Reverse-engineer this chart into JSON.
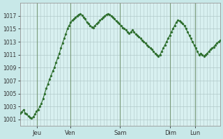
{
  "title": "",
  "background_color": "#c8e8e8",
  "plot_bg_color": "#d8f0f0",
  "line_color": "#2d6e2d",
  "marker_color": "#2d6e2d",
  "grid_color": "#b0c8c8",
  "day_line_color": "#7a9a7a",
  "ylim": [
    1000,
    1019
  ],
  "yticks": [
    1001,
    1003,
    1005,
    1007,
    1009,
    1011,
    1013,
    1015,
    1017
  ],
  "days": [
    "Jeu",
    "Ven",
    "Sam",
    "Dim",
    "Lun"
  ],
  "day_positions": [
    0.083,
    0.25,
    0.5,
    0.75,
    0.875
  ],
  "pressure_values": [
    1002.0,
    1002.2,
    1002.5,
    1002.0,
    1001.8,
    1001.5,
    1001.3,
    1001.2,
    1001.4,
    1001.8,
    1002.3,
    1002.5,
    1003.0,
    1003.5,
    1004.2,
    1005.0,
    1005.8,
    1006.5,
    1007.2,
    1007.8,
    1008.5,
    1009.0,
    1009.8,
    1010.5,
    1011.2,
    1012.0,
    1012.8,
    1013.5,
    1014.2,
    1015.0,
    1015.5,
    1016.0,
    1016.3,
    1016.5,
    1016.8,
    1017.0,
    1017.2,
    1017.3,
    1017.1,
    1016.8,
    1016.5,
    1016.0,
    1015.8,
    1015.5,
    1015.3,
    1015.2,
    1015.5,
    1015.8,
    1016.0,
    1016.3,
    1016.5,
    1016.8,
    1017.0,
    1017.2,
    1017.3,
    1017.2,
    1017.0,
    1016.8,
    1016.5,
    1016.2,
    1016.0,
    1015.8,
    1015.5,
    1015.2,
    1015.0,
    1014.8,
    1014.5,
    1014.3,
    1014.5,
    1014.8,
    1014.5,
    1014.2,
    1014.0,
    1013.8,
    1013.5,
    1013.2,
    1013.0,
    1012.8,
    1012.5,
    1012.3,
    1012.0,
    1011.8,
    1011.5,
    1011.2,
    1011.0,
    1010.8,
    1011.0,
    1011.5,
    1012.0,
    1012.5,
    1013.0,
    1013.5,
    1014.0,
    1014.5,
    1015.0,
    1015.5,
    1016.0,
    1016.3,
    1016.2,
    1016.0,
    1015.8,
    1015.5,
    1015.0,
    1014.5,
    1014.0,
    1013.5,
    1013.0,
    1012.5,
    1012.0,
    1011.5,
    1011.0,
    1011.2,
    1011.0,
    1010.8,
    1011.0,
    1011.2,
    1011.5,
    1011.8,
    1012.0,
    1012.2,
    1012.5,
    1012.8,
    1013.0,
    1013.2
  ]
}
